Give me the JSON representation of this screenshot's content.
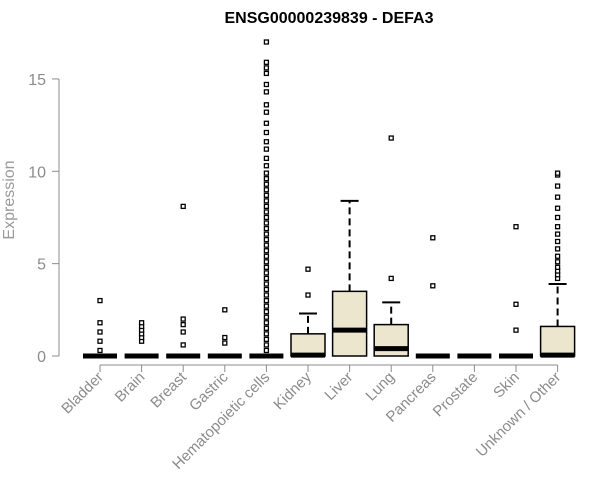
{
  "chart_data": {
    "type": "box",
    "title": "ENSG00000239839 - DEFA3",
    "xlabel": "",
    "ylabel": "Expression",
    "ylim": [
      0,
      17
    ],
    "yticks": [
      0,
      5,
      10,
      15
    ],
    "grid": false,
    "colors": {
      "box_fill": "#EDE6CE",
      "stroke": "#000000",
      "axis": "#8c8c8c"
    },
    "categories": [
      "Bladder",
      "Brain",
      "Breast",
      "Gastric",
      "Hematopoietic cells",
      "Kidney",
      "Liver",
      "Lung",
      "Pancreas",
      "Prostate",
      "Skin",
      "Unknown / Other"
    ],
    "boxes": [
      {
        "category": "Bladder",
        "q1": 0,
        "median": 0,
        "q3": 0,
        "whisker_low": 0,
        "whisker_high": 0,
        "outliers": [
          0.3,
          0.8,
          1.3,
          1.8,
          3.0
        ]
      },
      {
        "category": "Brain",
        "q1": 0,
        "median": 0,
        "q3": 0,
        "whisker_low": 0,
        "whisker_high": 0,
        "outliers": [
          0.8,
          1.0,
          1.2,
          1.4,
          1.6,
          1.8
        ]
      },
      {
        "category": "Breast",
        "q1": 0,
        "median": 0,
        "q3": 0,
        "whisker_low": 0,
        "whisker_high": 0,
        "outliers": [
          0.6,
          1.3,
          1.7,
          2.0,
          8.1
        ]
      },
      {
        "category": "Gastric",
        "q1": 0,
        "median": 0,
        "q3": 0,
        "whisker_low": 0,
        "whisker_high": 0,
        "outliers": [
          0.7,
          1.0,
          2.5
        ]
      },
      {
        "category": "Hematopoietic cells",
        "q1": 0,
        "median": 0,
        "q3": 0,
        "whisker_low": 0,
        "whisker_high": 0,
        "outliers": [
          0.3,
          0.6,
          0.9,
          1.2,
          1.5,
          1.8,
          2.1,
          2.4,
          2.7,
          3.0,
          3.3,
          3.6,
          3.9,
          4.2,
          4.5,
          4.8,
          5.1,
          5.4,
          5.7,
          6.0,
          6.3,
          6.6,
          6.9,
          7.2,
          7.5,
          7.8,
          8.1,
          8.4,
          8.7,
          9.0,
          9.3,
          9.6,
          9.9,
          10.3,
          10.7,
          11.2,
          11.6,
          12.1,
          12.6,
          13.2,
          13.6,
          14.3,
          14.7,
          15.3,
          15.6,
          15.9,
          17.0
        ]
      },
      {
        "category": "Kidney",
        "q1": 0,
        "median": 0.05,
        "q3": 1.2,
        "whisker_low": 0,
        "whisker_high": 2.3,
        "outliers": [
          3.3,
          4.7
        ]
      },
      {
        "category": "Liver",
        "q1": 0,
        "median": 1.4,
        "q3": 3.5,
        "whisker_low": 0,
        "whisker_high": 8.4,
        "outliers": []
      },
      {
        "category": "Lung",
        "q1": 0,
        "median": 0.4,
        "q3": 1.7,
        "whisker_low": 0,
        "whisker_high": 2.9,
        "outliers": [
          4.2,
          11.8
        ]
      },
      {
        "category": "Pancreas",
        "q1": 0,
        "median": 0,
        "q3": 0,
        "whisker_low": 0,
        "whisker_high": 0,
        "outliers": [
          3.8,
          6.4
        ]
      },
      {
        "category": "Prostate",
        "q1": 0,
        "median": 0,
        "q3": 0,
        "whisker_low": 0,
        "whisker_high": 0,
        "outliers": []
      },
      {
        "category": "Skin",
        "q1": 0,
        "median": 0,
        "q3": 0,
        "whisker_low": 0,
        "whisker_high": 0,
        "outliers": [
          1.4,
          2.8,
          7.0
        ]
      },
      {
        "category": "Unknown / Other",
        "q1": 0,
        "median": 0.05,
        "q3": 1.6,
        "whisker_low": 0,
        "whisker_high": 3.9,
        "outliers": [
          4.2,
          4.4,
          4.6,
          4.8,
          5.1,
          5.4,
          5.8,
          6.2,
          6.6,
          7.0,
          7.5,
          8.0,
          8.6,
          9.2,
          9.8,
          9.9
        ]
      }
    ]
  }
}
